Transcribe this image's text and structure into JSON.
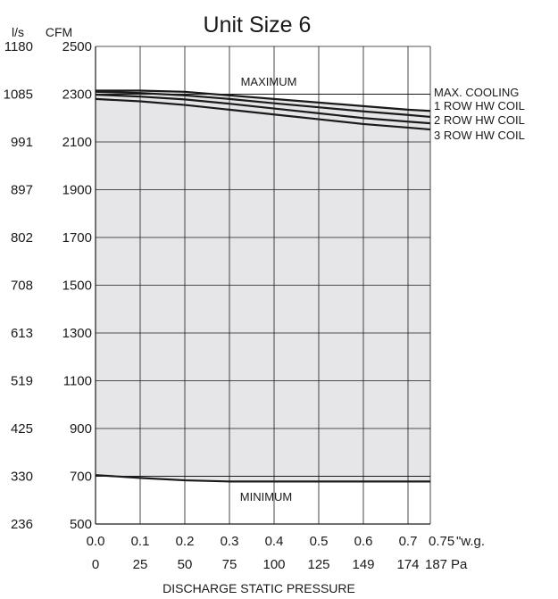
{
  "chart_data": {
    "type": "line",
    "title": "Unit Size 6",
    "xlabel": "DISCHARGE STATIC PRESSURE",
    "y_units": {
      "left": "l/s",
      "right": "CFM"
    },
    "y_ticks_cfm": [
      "2500",
      "2300",
      "2100",
      "1900",
      "1700",
      "1500",
      "1300",
      "1100",
      "900",
      "700",
      "500"
    ],
    "y_ticks_ls": [
      "1180",
      "1085",
      "991",
      "897",
      "802",
      "708",
      "613",
      "519",
      "425",
      "330",
      "236"
    ],
    "x_ticks_wg": [
      "0.0",
      "0.1",
      "0.2",
      "0.3",
      "0.4",
      "0.5",
      "0.6",
      "0.7"
    ],
    "x_ticks_pa": [
      "0",
      "25",
      "50",
      "75",
      "100",
      "125",
      "149",
      "174"
    ],
    "x_end_wg": "0.75",
    "x_end_pa": "187",
    "x_unit_wg": "\"w.g.",
    "x_unit_pa": "Pa",
    "xlim": [
      0,
      0.75
    ],
    "ylim": [
      500,
      2500
    ],
    "grid": true,
    "shaded_region": {
      "between": [
        "MAXIMUM",
        "MINIMUM"
      ],
      "color": "#e6e6e8"
    },
    "reference_lines": [
      {
        "name": "MAXIMUM",
        "cfm": 2300
      },
      {
        "name": "MINIMUM",
        "cfm": 700
      }
    ],
    "series": [
      {
        "name": "MAX. COOLING",
        "x": [
          0,
          0.1,
          0.2,
          0.3,
          0.4,
          0.5,
          0.6,
          0.7,
          0.75
        ],
        "y": [
          2315,
          2315,
          2310,
          2295,
          2280,
          2265,
          2250,
          2235,
          2230
        ]
      },
      {
        "name": "1 ROW HW COIL",
        "x": [
          0,
          0.1,
          0.2,
          0.3,
          0.4,
          0.5,
          0.6,
          0.7,
          0.75
        ],
        "y": [
          2310,
          2305,
          2295,
          2280,
          2262,
          2245,
          2228,
          2213,
          2205
        ]
      },
      {
        "name": "2 ROW HW COIL",
        "x": [
          0,
          0.1,
          0.2,
          0.3,
          0.4,
          0.5,
          0.6,
          0.7,
          0.75
        ],
        "y": [
          2298,
          2290,
          2278,
          2260,
          2240,
          2220,
          2200,
          2185,
          2178
        ]
      },
      {
        "name": "3 ROW HW COIL",
        "x": [
          0,
          0.1,
          0.2,
          0.3,
          0.4,
          0.5,
          0.6,
          0.7,
          0.75
        ],
        "y": [
          2280,
          2270,
          2255,
          2235,
          2215,
          2195,
          2175,
          2160,
          2152
        ]
      },
      {
        "name": "MINIMUM",
        "x": [
          0,
          0.1,
          0.2,
          0.3,
          0.4,
          0.5,
          0.6,
          0.7,
          0.75
        ],
        "y": [
          705,
          693,
          683,
          678,
          678,
          678,
          678,
          678,
          678
        ]
      }
    ],
    "colors": {
      "line": "#1a1a1a",
      "grid": "#1a1a1a",
      "fill": "#e6e6e8"
    }
  }
}
